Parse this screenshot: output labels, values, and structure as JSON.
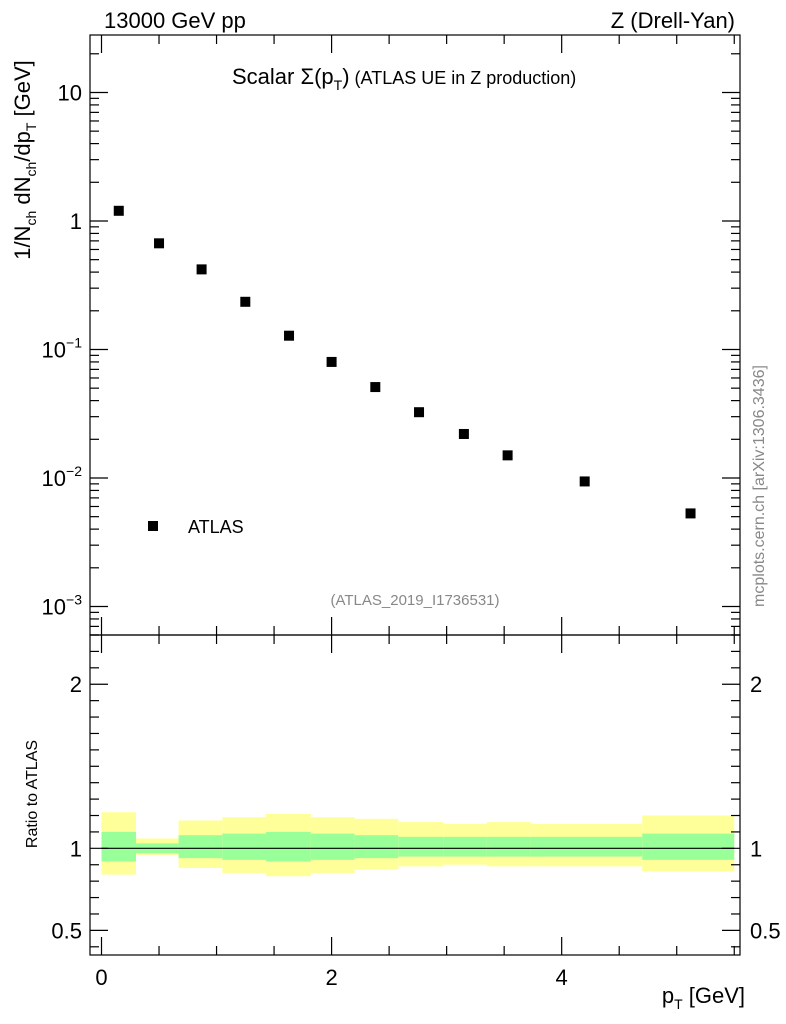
{
  "header": {
    "left_label": "13000 GeV pp",
    "right_label": "Z (Drell-Yan)"
  },
  "plot_title": {
    "prefix": "Scalar ",
    "sigma": "Σ(p",
    "sub": "T",
    "close": ")",
    "suffix": " (ATLAS UE in Z production)"
  },
  "watermark": "(ATLAS_2019_I1736531)",
  "side_label": "mcplots.cern.ch [arXiv:1306.3436]",
  "ylabel_main": {
    "p1": "1/N",
    "s1": "ch",
    "p2": " dN",
    "s2": "ch",
    "p3": "/dp",
    "s3": "T",
    "p4": " [GeV]"
  },
  "ylabel_ratio": "Ratio to ATLAS",
  "xlabel": {
    "p": "p",
    "sub": "T",
    "unit": " [GeV]"
  },
  "legend": {
    "label": "ATLAS"
  },
  "colors": {
    "band_outer": "#ffff99",
    "band_inner": "#99ff99",
    "marker": "#000000"
  },
  "chart_data": [
    {
      "type": "scatter",
      "yscale": "log",
      "xlim": [
        -0.1,
        5.55
      ],
      "ylim": [
        0.0006,
        28
      ],
      "yticks": [
        {
          "value": 0.001,
          "base": "10",
          "exp": "−3"
        },
        {
          "value": 0.01,
          "base": "10",
          "exp": "−2"
        },
        {
          "value": 0.1,
          "base": "10",
          "exp": "−1"
        },
        {
          "value": 1,
          "base": "1",
          "exp": ""
        },
        {
          "value": 10,
          "base": "10",
          "exp": ""
        }
      ],
      "series": [
        {
          "name": "ATLAS",
          "x": [
            0.15,
            0.5,
            0.87,
            1.25,
            1.63,
            2.0,
            2.38,
            2.76,
            3.15,
            3.53,
            4.2,
            5.12
          ],
          "y": [
            1.2,
            0.67,
            0.42,
            0.235,
            0.128,
            0.08,
            0.051,
            0.0325,
            0.022,
            0.015,
            0.0094,
            0.0053
          ]
        }
      ]
    },
    {
      "type": "area",
      "xlim": [
        -0.1,
        5.55
      ],
      "ylim": [
        0.35,
        2.3
      ],
      "xticks": [
        0,
        2,
        4
      ],
      "yticks": [
        0.5,
        1,
        2
      ],
      "reference_line": 1,
      "bins": [
        0,
        0.3,
        0.67,
        1.05,
        1.43,
        1.82,
        2.2,
        2.58,
        2.97,
        3.35,
        3.73,
        4.7,
        5.5
      ],
      "band_outer": {
        "low": [
          0.84,
          0.96,
          0.88,
          0.85,
          0.83,
          0.85,
          0.87,
          0.89,
          0.9,
          0.89,
          0.89,
          0.86
        ],
        "high": [
          1.22,
          1.06,
          1.17,
          1.19,
          1.21,
          1.19,
          1.18,
          1.16,
          1.15,
          1.16,
          1.15,
          1.2
        ]
      },
      "band_inner": {
        "low": [
          0.92,
          0.97,
          0.94,
          0.93,
          0.92,
          0.93,
          0.94,
          0.95,
          0.95,
          0.95,
          0.95,
          0.93
        ],
        "high": [
          1.1,
          1.03,
          1.08,
          1.09,
          1.1,
          1.09,
          1.08,
          1.07,
          1.07,
          1.07,
          1.07,
          1.09
        ]
      }
    }
  ]
}
